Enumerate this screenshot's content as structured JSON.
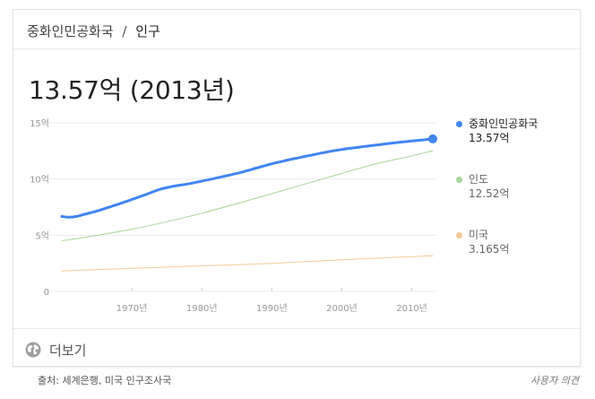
{
  "breadcrumb": {
    "parent": "중화인민공화국",
    "separator": "/",
    "current": "인구"
  },
  "headline": "13.57억 (2013년)",
  "more": {
    "label": "더보기",
    "icon": "globe-icon"
  },
  "footer": {
    "source": "출처: 세계은행, 미국 인구조사국",
    "feedback": "사용자 의견"
  },
  "colors": {
    "china": "#4285f4",
    "india": "#a8d49a",
    "usa": "#f5c99a",
    "grid": "#ececec",
    "tick": "#999999"
  },
  "chart_data": {
    "type": "line",
    "title": "",
    "xlabel": "",
    "ylabel": "",
    "unit": "억",
    "xlim": [
      1960,
      2013
    ],
    "ylim": [
      0,
      15
    ],
    "x_ticks": [
      1970,
      1980,
      1990,
      2000,
      2010
    ],
    "x_tick_labels": [
      "1970년",
      "1980년",
      "1990년",
      "2000년",
      "2010년"
    ],
    "y_ticks": [
      0,
      5,
      10,
      15
    ],
    "y_tick_labels": [
      "0",
      "5억",
      "10억",
      "15억"
    ],
    "grid": true,
    "legend_position": "right",
    "series": [
      {
        "name": "중화인민공화국",
        "value_label": "13.57억",
        "color": "#4285f4",
        "highlighted": true,
        "x": [
          1960,
          1961,
          1962,
          1963,
          1964,
          1965,
          1966,
          1967,
          1968,
          1969,
          1970,
          1972,
          1974,
          1976,
          1978,
          1980,
          1982,
          1984,
          1986,
          1988,
          1990,
          1992,
          1994,
          1996,
          1998,
          2000,
          2002,
          2004,
          2006,
          2008,
          2010,
          2012,
          2013
        ],
        "y": [
          6.67,
          6.6,
          6.66,
          6.82,
          6.98,
          7.15,
          7.35,
          7.55,
          7.75,
          7.96,
          8.18,
          8.62,
          9.08,
          9.37,
          9.56,
          9.81,
          10.08,
          10.36,
          10.66,
          11.01,
          11.35,
          11.65,
          11.91,
          12.17,
          12.42,
          12.63,
          12.8,
          12.96,
          13.11,
          13.25,
          13.38,
          13.51,
          13.57
        ]
      },
      {
        "name": "인도",
        "value_label": "12.52억",
        "color": "#a8d49a",
        "highlighted": false,
        "x": [
          1960,
          1965,
          1970,
          1975,
          1980,
          1985,
          1990,
          1995,
          2000,
          2005,
          2010,
          2013
        ],
        "y": [
          4.5,
          4.98,
          5.54,
          6.2,
          6.96,
          7.81,
          8.7,
          9.6,
          10.5,
          11.37,
          12.06,
          12.52
        ]
      },
      {
        "name": "미국",
        "value_label": "3.165억",
        "color": "#f5c99a",
        "highlighted": false,
        "x": [
          1960,
          1965,
          1970,
          1975,
          1980,
          1985,
          1990,
          1995,
          2000,
          2005,
          2010,
          2013
        ],
        "y": [
          1.81,
          1.94,
          2.05,
          2.16,
          2.27,
          2.38,
          2.5,
          2.66,
          2.82,
          2.96,
          3.09,
          3.165
        ]
      }
    ]
  }
}
